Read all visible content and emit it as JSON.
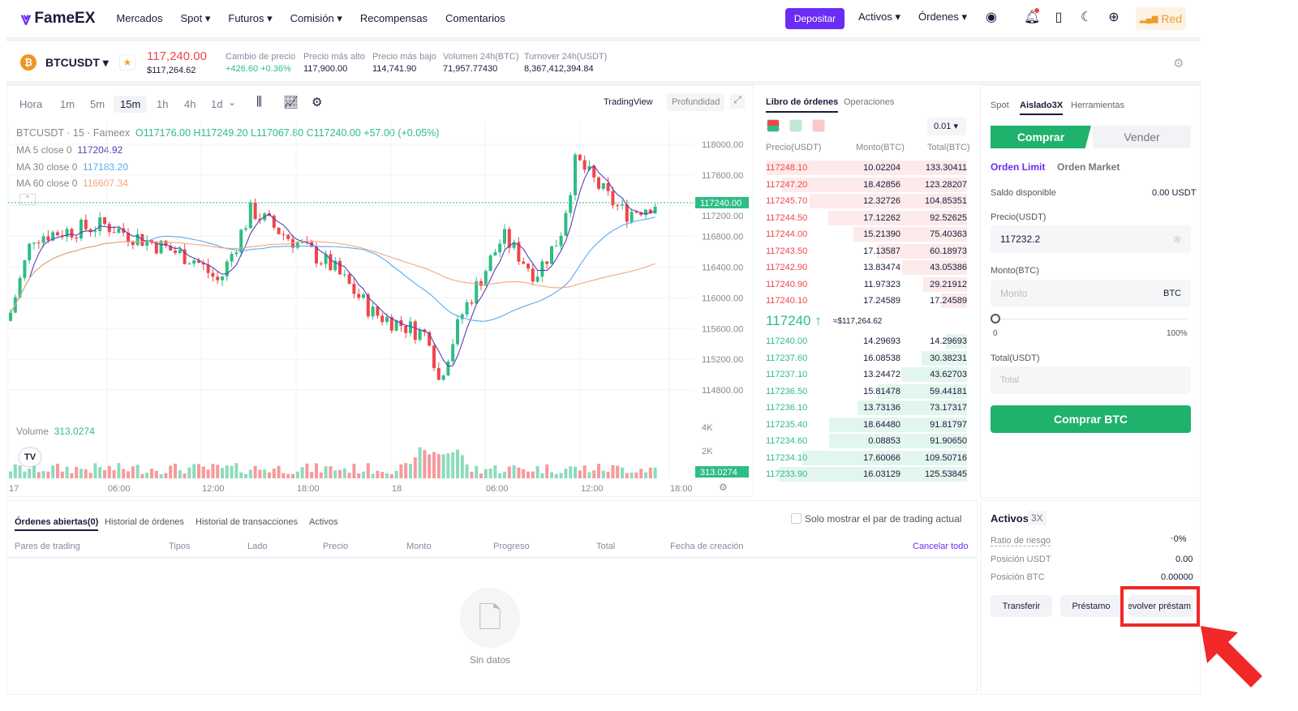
{
  "header": {
    "logo": "FameEX",
    "nav": [
      "Mercados",
      "Spot",
      "Futuros",
      "Comisión",
      "Recompensas",
      "Comentarios"
    ],
    "deposit": "Depositar",
    "assets": "Activos",
    "orders": "Órdenes",
    "network": "Red"
  },
  "ticker": {
    "symbol": "BTCUSDT",
    "price": "117,240.00",
    "usd": "$117,264.62",
    "stats": [
      {
        "label": "Cambio de precio",
        "value": "+426.60 +0.36%"
      },
      {
        "label": "Precio más alto",
        "value": "117,900.00"
      },
      {
        "label": "Precio más bajo",
        "value": "114,741.90"
      },
      {
        "label": "Volumen 24h(BTC)",
        "value": "71,957.77430"
      },
      {
        "label": "Turnover 24h(USDT)",
        "value": "8,367,412,394.84"
      }
    ]
  },
  "chart": {
    "intervals": [
      "Hora",
      "1m",
      "5m",
      "15m",
      "1h",
      "4h",
      "1d"
    ],
    "active_interval": "15m",
    "view_tradingview": "TradingView",
    "view_depth": "Profundidad",
    "legend": {
      "title": "BTCUSDT · 15 · Fameex",
      "ohlc": "O117176.00 H117249.20 L117067.80 C117240.00 +57.00 (+0.05%)",
      "ma5_label": "MA 5 close 0",
      "ma5": "117204.92",
      "ma30_label": "MA 30 close 0",
      "ma30": "117183.20",
      "ma60_label": "MA 60 close 0",
      "ma60": "116607.34"
    },
    "y_ticks": [
      "118000.00",
      "117600.00",
      "117200.00",
      "116800.00",
      "116400.00",
      "116000.00",
      "115600.00",
      "115200.00",
      "114800.00"
    ],
    "last_price": "117240.00",
    "volume_label": "Volume",
    "volume": "313.0274",
    "vol_ticks": [
      "4K",
      "2K"
    ],
    "x_ticks": [
      "17",
      "06:00",
      "12:00",
      "18:00",
      "18",
      "06:00",
      "12:00",
      "18:00"
    ],
    "colors": {
      "up": "#2ebd85",
      "down": "#f0454a",
      "ma5": "#5b3db8",
      "ma30": "#5aaaf0",
      "ma60": "#f5a67a"
    }
  },
  "orderbook": {
    "tabs": [
      "Libro de órdenes",
      "Operaciones"
    ],
    "precision": "0.01",
    "headers": [
      "Precio(USDT)",
      "Monto(BTC)",
      "Total(BTC)"
    ],
    "asks": [
      [
        "117248.10",
        "10.02204",
        "133.30411"
      ],
      [
        "117247.20",
        "18.42856",
        "123.28207"
      ],
      [
        "117245.70",
        "12.32726",
        "104.85351"
      ],
      [
        "117244.50",
        "17.12262",
        "92.52625"
      ],
      [
        "117244.00",
        "15.21390",
        "75.40363"
      ],
      [
        "117243.50",
        "17.13587",
        "60.18973"
      ],
      [
        "117242.90",
        "13.83474",
        "43.05386"
      ],
      [
        "117240.90",
        "11.97323",
        "29.21912"
      ],
      [
        "117240.10",
        "17.24589",
        "17.24589"
      ]
    ],
    "mid": "117240 ↑",
    "mid_usd": "≈$117,264.62",
    "bids": [
      [
        "117240.00",
        "14.29693",
        "14.29693"
      ],
      [
        "117237.60",
        "16.08538",
        "30.38231"
      ],
      [
        "117237.10",
        "13.24472",
        "43.62703"
      ],
      [
        "117236.50",
        "15.81478",
        "59.44181"
      ],
      [
        "117236.10",
        "13.73136",
        "73.17317"
      ],
      [
        "117235.40",
        "18.64480",
        "91.81797"
      ],
      [
        "117234.60",
        "0.08853",
        "91.90650"
      ],
      [
        "117234.10",
        "17.60066",
        "109.50716"
      ],
      [
        "117233.90",
        "16.03129",
        "125.53845"
      ]
    ]
  },
  "trade": {
    "tabs": [
      "Spot",
      "Aislado3X",
      "Herramientas"
    ],
    "buy": "Comprar",
    "sell": "Vender",
    "order_types": [
      "Orden Limit",
      "Orden Market"
    ],
    "balance_label": "Saldo disponible",
    "balance": "0.00 USDT",
    "price_label": "Precio(USDT)",
    "price": "117232.2",
    "amount_label": "Monto(BTC)",
    "amount_placeholder": "Monto",
    "amount_unit": "BTC",
    "slider_min": "0",
    "slider_max": "100%",
    "slider_value": 0,
    "total_label": "Total(USDT)",
    "total_placeholder": "Total",
    "submit": "Comprar BTC"
  },
  "assets": {
    "title": "Activos",
    "leverage": "3X",
    "risk_label": "Ratio de riesgo",
    "risk": "0%",
    "usdt_label": "Posición USDT",
    "usdt": "0.00",
    "btc_label": "Posición BTC",
    "btc": "0.00000",
    "buttons": [
      "Transferir",
      "Préstamo",
      "evolver préstam"
    ]
  },
  "orders": {
    "tabs": [
      "Órdenes abiertas(0)",
      "Historial de órdenes",
      "Historial de transacciones",
      "Activos"
    ],
    "only_pair": "Solo mostrar el par de trading actual",
    "columns": [
      "Pares de trading",
      "Tipos",
      "Lado",
      "Precio",
      "Monto",
      "Progreso",
      "Total",
      "Fecha de creación"
    ],
    "cancel_all": "Cancelar todo",
    "empty": "Sin datos"
  }
}
